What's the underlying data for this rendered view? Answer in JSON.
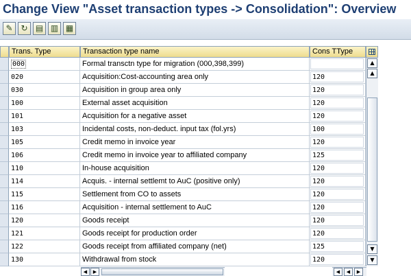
{
  "window": {
    "title": "Change View \"Asset transaction types -> Consolidation\": Overview"
  },
  "toolbar": {
    "buttons": [
      {
        "icon": "edit-glasses-icon",
        "glyph": "✎"
      },
      {
        "icon": "refresh-icon",
        "glyph": "↻"
      },
      {
        "icon": "select-all-icon",
        "glyph": "▤"
      },
      {
        "icon": "select-block-icon",
        "glyph": "▥"
      },
      {
        "icon": "deselect-all-icon",
        "glyph": "▦"
      }
    ]
  },
  "table": {
    "columns": {
      "code": "Trans. Type",
      "name": "Transaction type name",
      "cons": "Cons TType"
    },
    "rows": [
      {
        "code": "000",
        "name": "Formal transctn type for migration (000,398,399)",
        "cons": ""
      },
      {
        "code": "020",
        "name": "Acquisition:Cost-accounting area only",
        "cons": "120"
      },
      {
        "code": "030",
        "name": "Acquisition in group area only",
        "cons": "120"
      },
      {
        "code": "100",
        "name": "External asset acquisition",
        "cons": "120"
      },
      {
        "code": "101",
        "name": "Acquisition for a negative asset",
        "cons": "120"
      },
      {
        "code": "103",
        "name": "Incidental costs, non-deduct. input tax (fol.yrs)",
        "cons": "100"
      },
      {
        "code": "105",
        "name": "Credit memo in invoice year",
        "cons": "120"
      },
      {
        "code": "106",
        "name": "Credit memo in invoice year to affiliated company",
        "cons": "125"
      },
      {
        "code": "110",
        "name": "In-house acquisition",
        "cons": "120"
      },
      {
        "code": "114",
        "name": "Acquis. - internal settlemt to AuC (positive only)",
        "cons": "120"
      },
      {
        "code": "115",
        "name": "Settlement from CO to assets",
        "cons": "120"
      },
      {
        "code": "116",
        "name": "Acquisition - internal settlement to AuC",
        "cons": "120"
      },
      {
        "code": "120",
        "name": "Goods receipt",
        "cons": "120"
      },
      {
        "code": "121",
        "name": "Goods receipt for production order",
        "cons": "120"
      },
      {
        "code": "122",
        "name": "Goods receipt from affiliated company (net)",
        "cons": "125"
      },
      {
        "code": "130",
        "name": "Withdrawal from stock",
        "cons": "120"
      }
    ]
  },
  "colors": {
    "title": "#1e3f73",
    "header_bg": "#eedc8e",
    "row_selector": "#dfe6ef"
  }
}
